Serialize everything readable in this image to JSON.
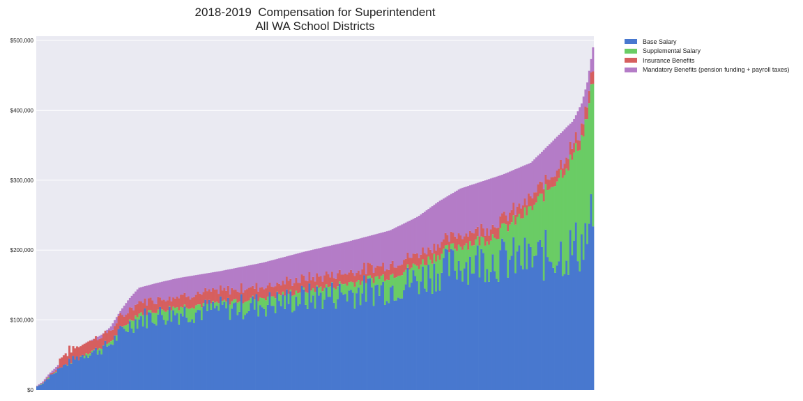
{
  "chart_data": {
    "type": "bar",
    "stacked": true,
    "title": "2018-2019  Compensation for Superintendent",
    "subtitle": "All WA School Districts",
    "xlabel": "",
    "ylabel": "",
    "ylim": [
      0,
      500000
    ],
    "y_ticks": [
      {
        "value": 0,
        "label": "$0"
      },
      {
        "value": 100000,
        "label": "$100,000"
      },
      {
        "value": 200000,
        "label": "$200,000"
      },
      {
        "value": 300000,
        "label": "$300,000"
      },
      {
        "value": 400000,
        "label": "$400,000"
      },
      {
        "value": 500000,
        "label": "$500,000"
      }
    ],
    "grid": true,
    "legend_position": "outside-top-right",
    "background_color": "#eaeaf2",
    "series": [
      {
        "name": "Base Salary",
        "color": "#4878cf"
      },
      {
        "name": "Supplemental Salary",
        "color": "#6acc65"
      },
      {
        "name": "Insurance Benefits",
        "color": "#d65f5f"
      },
      {
        "name": "Mandatory Benefits (pension funding + payroll taxes)",
        "color": "#b47cc7"
      }
    ],
    "districts": {
      "count": 295,
      "totals": [
        [
          0,
          6000
        ],
        [
          4,
          12000
        ],
        [
          8,
          22000
        ],
        [
          12,
          30000
        ],
        [
          18,
          42000
        ],
        [
          25,
          55000
        ],
        [
          35,
          68000
        ],
        [
          45,
          78000
        ],
        [
          52,
          90000
        ],
        [
          58,
          110000
        ],
        [
          65,
          130000
        ],
        [
          72,
          146000
        ],
        [
          85,
          153000
        ],
        [
          100,
          160000
        ],
        [
          130,
          170000
        ],
        [
          160,
          182000
        ],
        [
          190,
          198000
        ],
        [
          220,
          212000
        ],
        [
          250,
          228000
        ],
        [
          270,
          248000
        ],
        [
          285,
          270000
        ],
        [
          300,
          288000
        ],
        [
          330,
          308000
        ],
        [
          350,
          325000
        ],
        [
          360,
          345000
        ],
        [
          370,
          365000
        ],
        [
          380,
          385000
        ],
        [
          386,
          410000
        ],
        [
          390,
          440000
        ],
        [
          394,
          490000
        ]
      ],
      "base_share": [
        [
          0,
          0.82
        ],
        [
          70,
          0.7
        ],
        [
          200,
          0.66
        ],
        [
          320,
          0.62
        ],
        [
          394,
          0.5
        ]
      ],
      "supplemental_share": [
        [
          0,
          0.0
        ],
        [
          70,
          0.05
        ],
        [
          200,
          0.06
        ],
        [
          320,
          0.1
        ],
        [
          394,
          0.4
        ]
      ],
      "insurance_value": 15000
    }
  }
}
